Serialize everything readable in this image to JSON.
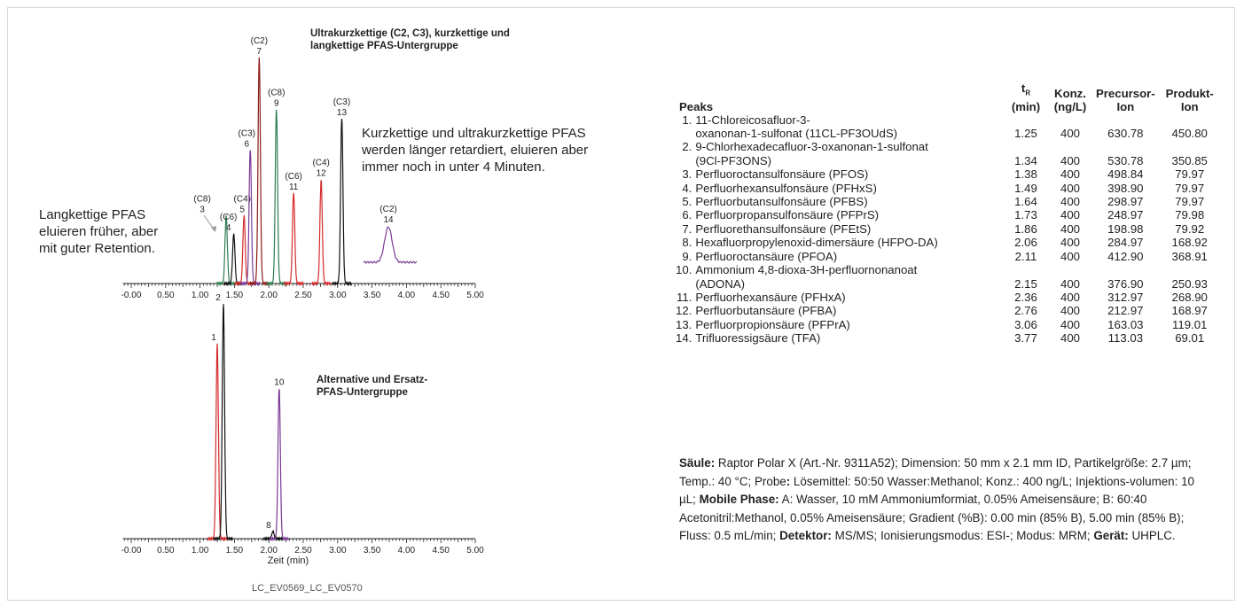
{
  "chart_data": [
    {
      "type": "line",
      "title": "Ultrakurzkettige (C2, C3), kurzkettige und langkettige PFAS-Untergruppe",
      "xlabel": "",
      "ylabel": "",
      "xlim": [
        0,
        5.0
      ],
      "xticks": [
        "-0.00",
        "0.50",
        "1.00",
        "1.50",
        "2.00",
        "2.50",
        "3.00",
        "3.50",
        "4.00",
        "4.50",
        "5.00"
      ],
      "peaks": [
        {
          "label": "3",
          "group": "(C8)",
          "tr": 1.38,
          "rel_height": 0.3,
          "color": "#2e7d4f"
        },
        {
          "label": "4",
          "group": "(C6)",
          "tr": 1.49,
          "rel_height": 0.22,
          "color": "#111111"
        },
        {
          "label": "5",
          "group": "(C4)",
          "tr": 1.64,
          "rel_height": 0.3,
          "color": "#d42a2a"
        },
        {
          "label": "6",
          "group": "(C3)",
          "tr": 1.73,
          "rel_height": 0.59,
          "color": "#7b3a96"
        },
        {
          "label": "7",
          "group": "(C2)",
          "tr": 1.86,
          "rel_height": 1.0,
          "color": "#8b1a1a"
        },
        {
          "label": "9",
          "group": "(C8)",
          "tr": 2.11,
          "rel_height": 0.77,
          "color": "#2e7d4f"
        },
        {
          "label": "11",
          "group": "(C6)",
          "tr": 2.36,
          "rel_height": 0.4,
          "color": "#d42a2a"
        },
        {
          "label": "12",
          "group": "(C4)",
          "tr": 2.76,
          "rel_height": 0.46,
          "color": "#d42a2a"
        },
        {
          "label": "13",
          "group": "(C3)",
          "tr": 3.06,
          "rel_height": 0.73,
          "color": "#111111"
        }
      ],
      "inset_peak": {
        "label": "14",
        "group": "(C2)",
        "tr": 3.77,
        "color": "#7b3a96"
      }
    },
    {
      "type": "line",
      "title": "Alternative und Ersatz-PFAS-Untergruppe",
      "xlabel": "Zeit (min)",
      "ylabel": "",
      "xlim": [
        0,
        5.0
      ],
      "xticks": [
        "-0.00",
        "0.50",
        "1.00",
        "1.50",
        "2.00",
        "2.50",
        "3.00",
        "3.50",
        "4.00",
        "4.50",
        "5.00"
      ],
      "peaks": [
        {
          "label": "1",
          "tr": 1.25,
          "rel_height": 0.83,
          "color": "#d42a2a"
        },
        {
          "label": "2",
          "tr": 1.34,
          "rel_height": 1.0,
          "color": "#111111"
        },
        {
          "label": "8",
          "tr": 2.06,
          "rel_height": 0.03,
          "color": "#111111"
        },
        {
          "label": "10",
          "tr": 2.15,
          "rel_height": 0.64,
          "color": "#7b3a96"
        }
      ]
    }
  ],
  "annotations": {
    "upper_title_line1": "Ultrakurzkettige (C2, C3), kurzkettige und",
    "upper_title_line2": "langkettige PFAS-Untergruppe",
    "short_chain_line1": "Kurzkettige und ultrakurzkettige PFAS",
    "short_chain_line2": "werden länger retardiert, eluieren aber",
    "short_chain_line3": "immer noch in unter 4 Minuten.",
    "long_chain_line1": "Langkettige PFAS",
    "long_chain_line2": "eluieren früher, aber",
    "long_chain_line3": "mit guter Retention.",
    "lower_title_line1": "Alternative und Ersatz-",
    "lower_title_line2": "PFAS-Untergruppe"
  },
  "table": {
    "headers": {
      "peaks": "Peaks",
      "tr_main": "t",
      "tr_sub": "R",
      "tr_unit": "(min)",
      "conc": "Konz.",
      "conc_unit": "(ng/L)",
      "precursor1": "Precursor-",
      "precursor2": "Ion",
      "product1": "Produkt-",
      "product2": "Ion"
    },
    "rows": [
      {
        "idx": "1.",
        "name1": "11-Chloreicosafluor-3-",
        "name2": "oxanonan-1-sulfonat (11CL-PF3OUdS)",
        "tr": "1.25",
        "conc": "400",
        "precursor": "630.78",
        "product": "450.80"
      },
      {
        "idx": "2.",
        "name1": "9-Chlorhexadecafluor-3-oxanonan-1-sulfonat",
        "name2": "(9Cl-PF3ONS)",
        "tr": "1.34",
        "conc": "400",
        "precursor": "530.78",
        "product": "350.85"
      },
      {
        "idx": "3.",
        "name1": "Perfluoroctansulfonsäure (PFOS)",
        "tr": "1.38",
        "conc": "400",
        "precursor": "498.84",
        "product": "79.97"
      },
      {
        "idx": "4.",
        "name1": "Perfluorhexansulfonsäure (PFHxS)",
        "tr": "1.49",
        "conc": "400",
        "precursor": "398.90",
        "product": "79.97"
      },
      {
        "idx": "5.",
        "name1": "Perfluorbutansulfonsäure (PFBS)",
        "tr": "1.64",
        "conc": "400",
        "precursor": "298.97",
        "product": "79.97"
      },
      {
        "idx": "6.",
        "name1": "Perfluorpropansulfonsäure (PFPrS)",
        "tr": "1.73",
        "conc": "400",
        "precursor": "248.97",
        "product": "79.98"
      },
      {
        "idx": "7.",
        "name1": "Perfluorethansulfonsäure (PFEtS)",
        "tr": "1.86",
        "conc": "400",
        "precursor": "198.98",
        "product": "79.92"
      },
      {
        "idx": "8.",
        "name1": "Hexafluorpropylenoxid-dimersäure (HFPO-DA)",
        "tr": "2.06",
        "conc": "400",
        "precursor": "284.97",
        "product": "168.92"
      },
      {
        "idx": "9.",
        "name1": "Perfluoroctansäure (PFOA)",
        "tr": "2.11",
        "conc": "400",
        "precursor": "412.90",
        "product": "368.91"
      },
      {
        "idx": "10.",
        "name1": "Ammonium 4,8-dioxa-3H-perfluornonanoat",
        "name2": "(ADONA)",
        "tr": "2.15",
        "conc": "400",
        "precursor": "376.90",
        "product": "250.93"
      },
      {
        "idx": "11.",
        "name1": "Perfluorhexansäure (PFHxA)",
        "tr": "2.36",
        "conc": "400",
        "precursor": "312.97",
        "product": "268.90"
      },
      {
        "idx": "12.",
        "name1": "Perfluorbutansäure (PFBA)",
        "tr": "2.76",
        "conc": "400",
        "precursor": "212.97",
        "product": "168.97"
      },
      {
        "idx": "13.",
        "name1": "Perfluorpropionsäure (PFPrA)",
        "tr": "3.06",
        "conc": "400",
        "precursor": "163.03",
        "product": "119.01"
      },
      {
        "idx": "14.",
        "name1": "Trifluoressigsäure (TFA)",
        "tr": "3.77",
        "conc": "400",
        "precursor": "113.03",
        "product": "69.01"
      }
    ]
  },
  "conditions": [
    {
      "bold": true,
      "text": "Säule:"
    },
    {
      "bold": false,
      "text": " Raptor Polar X (Art.-Nr. 9311A52); Dimension: 50 mm x 2.1 mm ID, Partikelgröße: 2.7 µm; Temp.: 40 °C; Probe"
    },
    {
      "bold": true,
      "text": ":"
    },
    {
      "bold": false,
      "text": " Lösemittel: 50:50 Wasser:Methanol; Konz.: 400 ng/L; Injektions-volumen: 10 µL; "
    },
    {
      "bold": true,
      "text": "Mobile Phase:"
    },
    {
      "bold": false,
      "text": " A: Wasser, 10 mM Ammoniumformiat, 0.05% Ameisensäure; B: 60:40 Acetonitril:Methanol, 0.05% Ameisensäure; Gradient (%B): 0.00 min (85% B), 5.00 min (85% B); Fluss: 0.5 mL/min; "
    },
    {
      "bold": true,
      "text": "Detektor:"
    },
    {
      "bold": false,
      "text": " MS/MS; Ionisierungsmodus: ESI-; Modus: MRM; "
    },
    {
      "bold": true,
      "text": "Gerät:"
    },
    {
      "bold": false,
      "text": " UHPLC."
    }
  ],
  "footer_code": "LC_EV0569_LC_EV0570"
}
